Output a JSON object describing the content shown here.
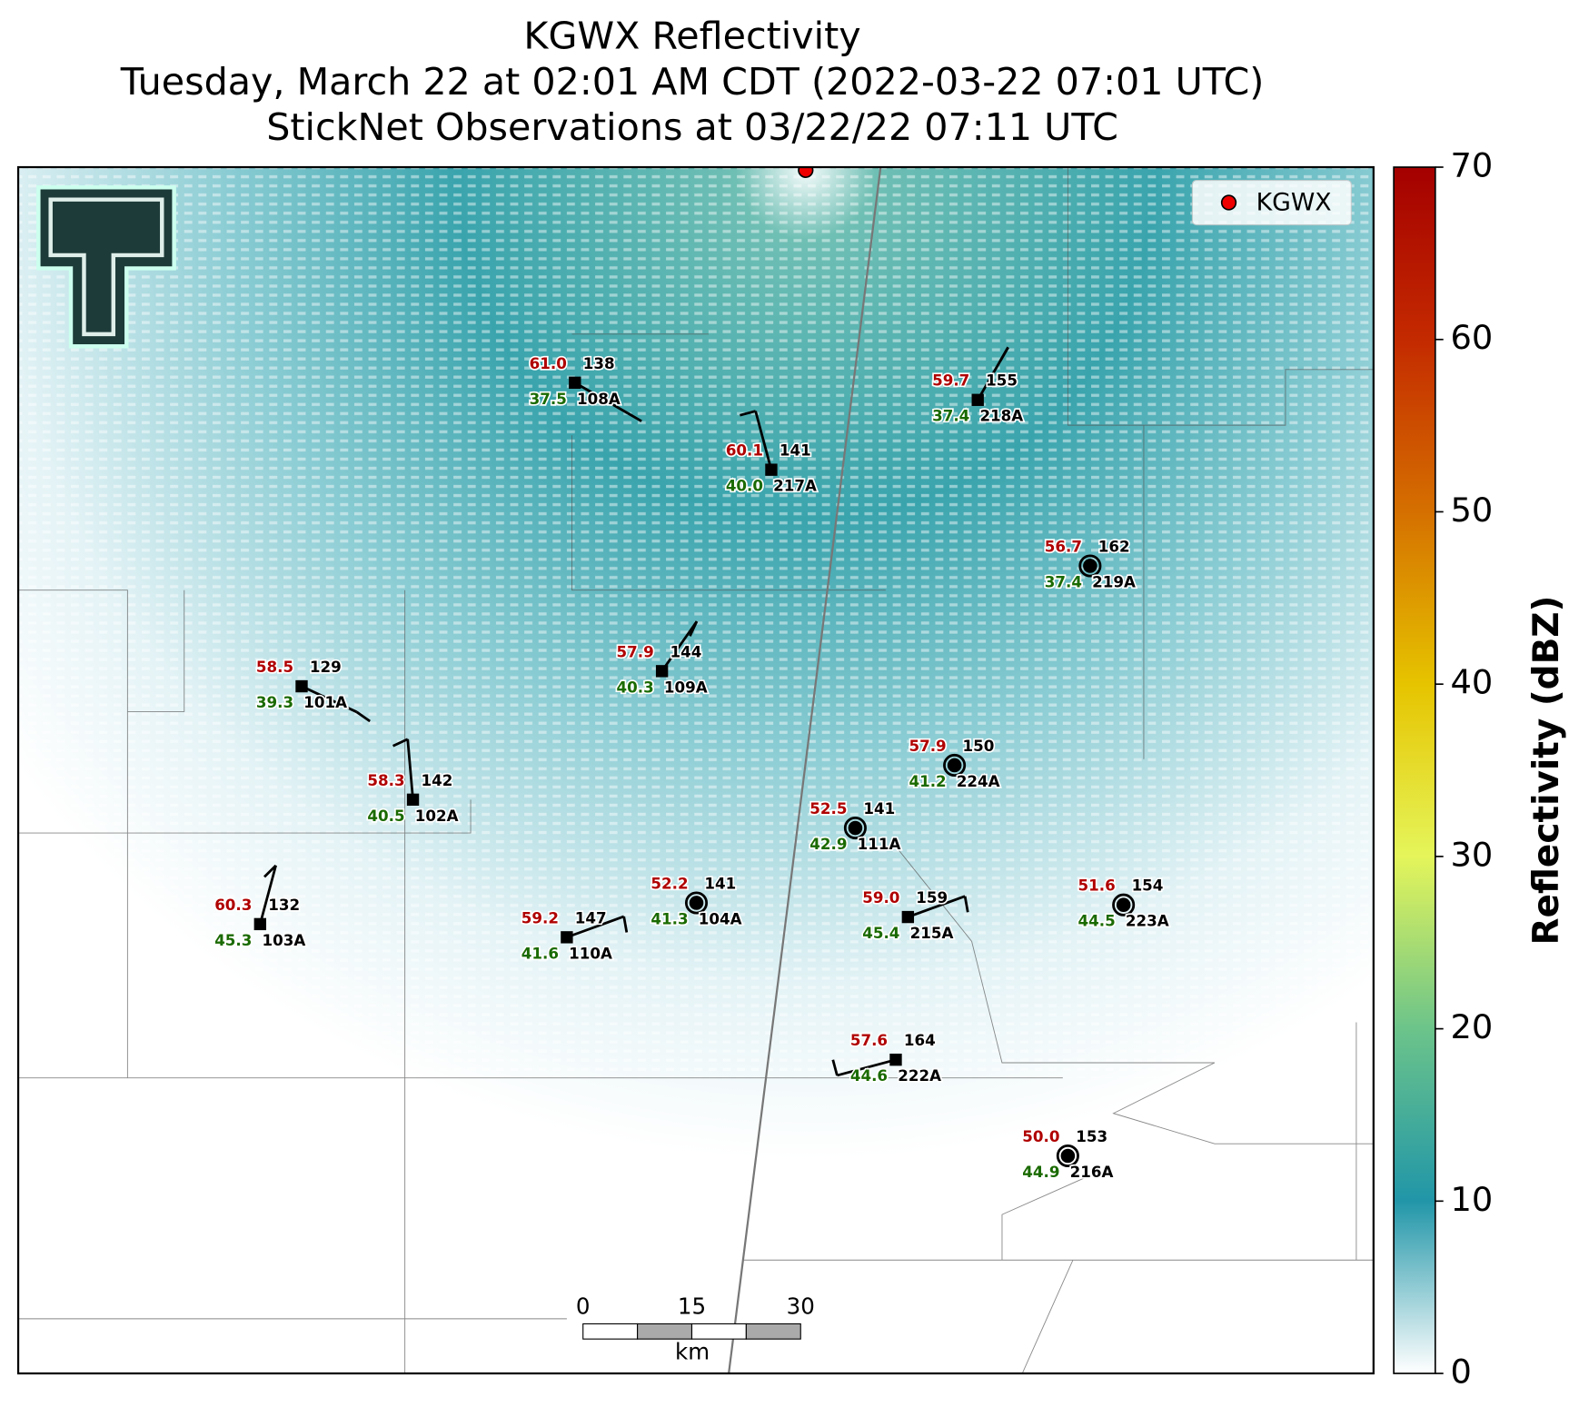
{
  "title": [
    "KGWX Reflectivity",
    "Tuesday, March 22 at 02:01 AM CDT (2022-03-22 07:01 UTC)",
    "StickNet Observations at 03/22/22 07:11 UTC"
  ],
  "legend": "KGWX",
  "colorbar": {
    "label": "Reflectivity (dBZ)",
    "lim": [
      0,
      70
    ],
    "ticks": [
      0,
      10,
      20,
      30,
      40,
      50,
      60,
      70
    ]
  },
  "scalebar": {
    "ticks": [
      0,
      15,
      30
    ],
    "unit": "km"
  },
  "stations": [
    {
      "id": "108A",
      "temp": "61.0",
      "dewpoint": "37.5",
      "value": "138"
    },
    {
      "id": "217A",
      "temp": "60.1",
      "dewpoint": "40.0",
      "value": "141"
    },
    {
      "id": "218A",
      "temp": "59.7",
      "dewpoint": "37.4",
      "value": "155"
    },
    {
      "id": "219A",
      "temp": "56.7",
      "dewpoint": "37.4",
      "value": "162"
    },
    {
      "id": "109A",
      "temp": "57.9",
      "dewpoint": "40.3",
      "value": "144"
    },
    {
      "id": "101A",
      "temp": "58.5",
      "dewpoint": "39.3",
      "value": "129"
    },
    {
      "id": "224A",
      "temp": "57.9",
      "dewpoint": "41.2",
      "value": "150"
    },
    {
      "id": "102A",
      "temp": "58.3",
      "dewpoint": "40.5",
      "value": "142"
    },
    {
      "id": "111A",
      "temp": "52.5",
      "dewpoint": "42.9",
      "value": "141"
    },
    {
      "id": "103A",
      "temp": "60.3",
      "dewpoint": "45.3",
      "value": "132"
    },
    {
      "id": "110A",
      "temp": "59.2",
      "dewpoint": "41.6",
      "value": "147"
    },
    {
      "id": "104A",
      "temp": "52.2",
      "dewpoint": "41.3",
      "value": "141"
    },
    {
      "id": "215A",
      "temp": "59.0",
      "dewpoint": "45.4",
      "value": "159"
    },
    {
      "id": "223A",
      "temp": "51.6",
      "dewpoint": "44.5",
      "value": "154"
    },
    {
      "id": "222A",
      "temp": "57.6",
      "dewpoint": "44.6",
      "value": "164"
    },
    {
      "id": "216A",
      "temp": "50.0",
      "dewpoint": "44.9",
      "value": "153"
    }
  ]
}
